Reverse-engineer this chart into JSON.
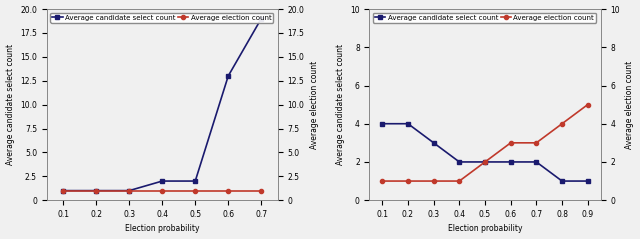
{
  "left": {
    "x": [
      0.1,
      0.2,
      0.3,
      0.4,
      0.5,
      0.6,
      0.7
    ],
    "blue_y": [
      1.0,
      1.0,
      1.0,
      2.0,
      2.0,
      13.0,
      19.0
    ],
    "red_y": [
      1.0,
      1.0,
      1.0,
      1.0,
      1.0,
      1.0,
      1.0
    ],
    "ylim": [
      0.0,
      20.0
    ],
    "left_yticks": [
      0.0,
      2.5,
      5.0,
      7.5,
      10.0,
      12.5,
      15.0,
      17.5,
      20.0
    ],
    "right_yticks": [
      0.0,
      2.5,
      5.0,
      7.5,
      10.0,
      12.5,
      15.0,
      17.5,
      20.0
    ],
    "xlabel": "Election probability",
    "ylabel_left": "Average candidate select count",
    "ylabel_right": "Average election count",
    "xticks": [
      0.1,
      0.2,
      0.3,
      0.4,
      0.5,
      0.6,
      0.7
    ],
    "xlim": [
      0.05,
      0.75
    ]
  },
  "right": {
    "x": [
      0.1,
      0.2,
      0.3,
      0.4,
      0.5,
      0.6,
      0.7,
      0.8,
      0.9
    ],
    "blue_y": [
      4.0,
      4.0,
      3.0,
      2.0,
      2.0,
      2.0,
      2.0,
      1.0,
      1.0
    ],
    "red_y": [
      1.0,
      1.0,
      1.0,
      1.0,
      2.0,
      3.0,
      3.0,
      4.0,
      5.0
    ],
    "ylim": [
      0,
      10
    ],
    "left_yticks": [
      0,
      2,
      4,
      6,
      8,
      10
    ],
    "right_yticks": [
      0,
      2,
      4,
      6,
      8,
      10
    ],
    "xlabel": "Election probability",
    "ylabel_left": "Average candidate select count",
    "ylabel_right": "Average election count",
    "xticks": [
      0.1,
      0.2,
      0.3,
      0.4,
      0.5,
      0.6,
      0.7,
      0.8,
      0.9
    ],
    "xlim": [
      0.05,
      0.95
    ]
  },
  "blue_color": "#1a1a6e",
  "red_color": "#c0392b",
  "legend_label_blue": "Average candidate select count",
  "legend_label_red": "Average election count",
  "marker_size": 3,
  "line_width": 1.2,
  "font_size": 5.5,
  "label_font_size": 5.5,
  "bg_color": "#f0f0f0"
}
